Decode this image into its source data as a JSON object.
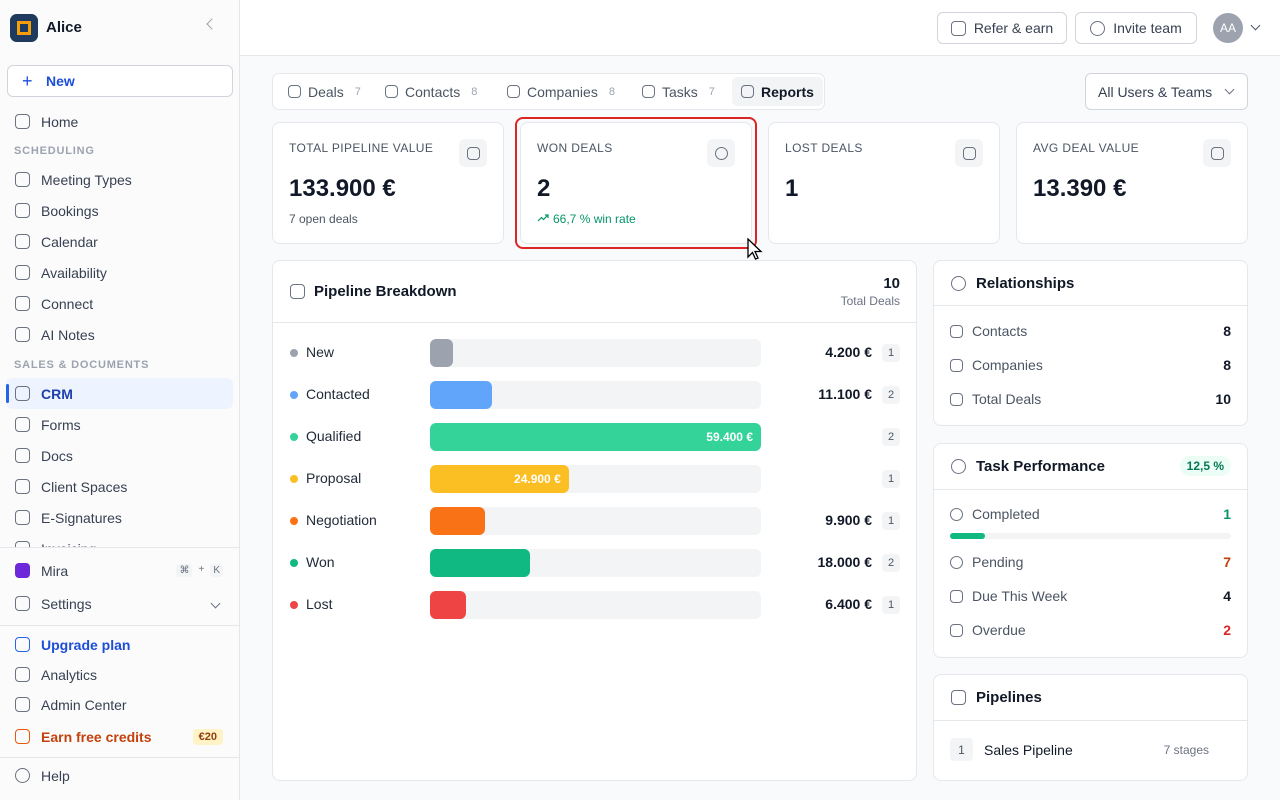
{
  "sidebar": {
    "workspace": "Alice",
    "new": "New",
    "home": "Home",
    "sections": [
      {
        "title": "SCHEDULING",
        "items": [
          "Meeting Types",
          "Bookings",
          "Calendar",
          "Availability",
          "Connect",
          "AI Notes"
        ]
      },
      {
        "title": "SALES & DOCUMENTS",
        "items": [
          "CRM",
          "Forms",
          "Docs",
          "Client Spaces",
          "E-Signatures",
          "Invoicing"
        ]
      }
    ],
    "mira": "Mira",
    "shortcut": [
      "⌘",
      "+",
      "K"
    ],
    "settings": "Settings",
    "bottom": [
      "Upgrade plan",
      "Analytics",
      "Admin Center",
      "Earn free credits"
    ],
    "credits_badge": "€20",
    "help": "Help"
  },
  "topbar": {
    "refer": "Refer & earn",
    "invite": "Invite team",
    "avatar": "AA"
  },
  "tabs": [
    {
      "label": "Deals",
      "count": 7
    },
    {
      "label": "Contacts",
      "count": 8
    },
    {
      "label": "Companies",
      "count": 8
    },
    {
      "label": "Tasks",
      "count": 7
    },
    {
      "label": "Reports"
    }
  ],
  "filter": "All Users & Teams",
  "stats": [
    {
      "title": "TOTAL PIPELINE VALUE",
      "value": "133.900 €",
      "note": "7 open deals"
    },
    {
      "title": "WON DEALS",
      "value": 2,
      "note": "66,7 % win rate"
    },
    {
      "title": "LOST DEALS",
      "value": 1
    },
    {
      "title": "AVG DEAL VALUE",
      "value": "13.390 €"
    }
  ],
  "pipeline": {
    "title": "Pipeline Breakdown",
    "total": 10,
    "total_label": "Total Deals",
    "stages": [
      {
        "name": "New",
        "color": "#9ca3af",
        "value": 4200,
        "label": "4.200 €",
        "count": 1
      },
      {
        "name": "Contacted",
        "color": "#60a5fa",
        "value": 11100,
        "label": "11.100 €",
        "count": 2
      },
      {
        "name": "Qualified",
        "color": "#34d399",
        "value": 59400,
        "label": "59.400 €",
        "count": 2
      },
      {
        "name": "Proposal",
        "color": "#fbbf24",
        "value": 24900,
        "label": "24.900 €",
        "count": 1
      },
      {
        "name": "Negotiation",
        "color": "#f97316",
        "value": 9900,
        "label": "9.900 €",
        "count": 1
      },
      {
        "name": "Won",
        "color": "#10b981",
        "value": 18000,
        "label": "18.000 €",
        "count": 2
      },
      {
        "name": "Lost",
        "color": "#ef4444",
        "value": 6400,
        "label": "6.400 €",
        "count": 1
      }
    ]
  },
  "relationships": {
    "title": "Relationships",
    "rows": [
      {
        "label": "Contacts",
        "value": 8
      },
      {
        "label": "Companies",
        "value": 8
      },
      {
        "label": "Total Deals",
        "value": 10
      }
    ]
  },
  "tasks": {
    "title": "Task Performance",
    "rate": {
      "value": 12.5,
      "label": "12,5 %"
    },
    "rows": [
      {
        "label": "Completed",
        "value": 1,
        "color": "#059669"
      },
      {
        "label": "Pending",
        "value": 7,
        "color": "#c2410c"
      },
      {
        "label": "Due This Week",
        "value": 4,
        "color": "#111827"
      },
      {
        "label": "Overdue",
        "value": 2,
        "color": "#dc2626"
      }
    ]
  },
  "pipelines": {
    "title": "Pipelines",
    "items": [
      {
        "index": 1,
        "name": "Sales Pipeline",
        "stages": "7 stages"
      }
    ]
  }
}
